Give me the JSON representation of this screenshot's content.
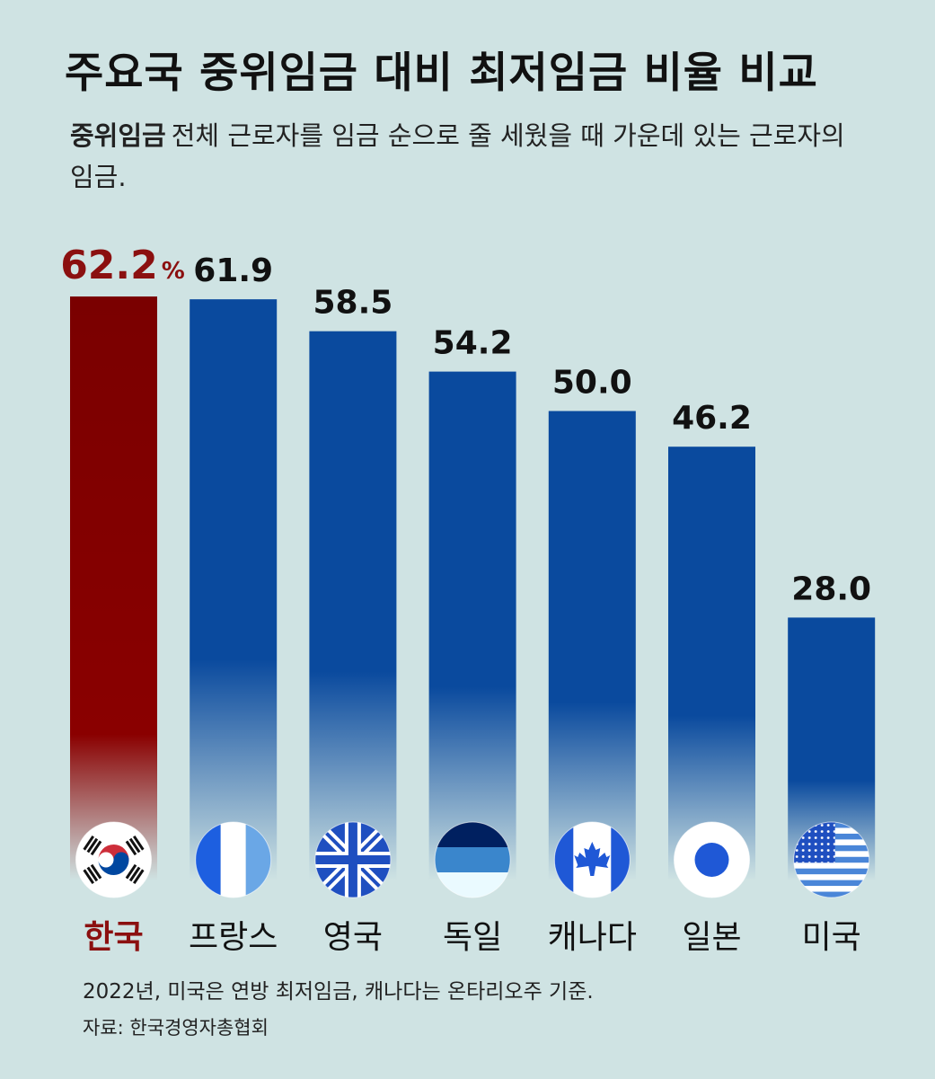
{
  "title": "주요국 중위임금 대비 최저임금 비율 비교",
  "definition": {
    "term": "중위임금",
    "text": "전체 근로자를 임금 순으로 줄 세웠을 때 가운데 있는 근로자의 임금."
  },
  "note": "2022년, 미국은 연방 최저임금, 캐나다는 온타리오주 기준.",
  "source": "자료: 한국경영자총협회",
  "colors": {
    "highlight": "#7a0000",
    "highlight_label": "#8b1010",
    "bar": "#0a4a9e",
    "background": "#cfe3e3"
  },
  "chart_data": {
    "type": "bar",
    "unit": "%",
    "categories": [
      "한국",
      "프랑스",
      "영국",
      "독일",
      "캐나다",
      "일본",
      "미국"
    ],
    "values": [
      62.2,
      61.9,
      58.5,
      54.2,
      50.0,
      46.2,
      28.0
    ],
    "value_labels": [
      "62.2",
      "61.9",
      "58.5",
      "54.2",
      "50.0",
      "46.2",
      "28.0"
    ],
    "highlight_index": 0,
    "flags": [
      "korea-flag-icon",
      "france-flag-icon",
      "uk-flag-icon",
      "germany-flag-icon",
      "canada-flag-icon",
      "japan-flag-icon",
      "usa-flag-icon"
    ],
    "ylim": [
      0,
      62.2
    ],
    "legend": "none",
    "grid": false
  }
}
